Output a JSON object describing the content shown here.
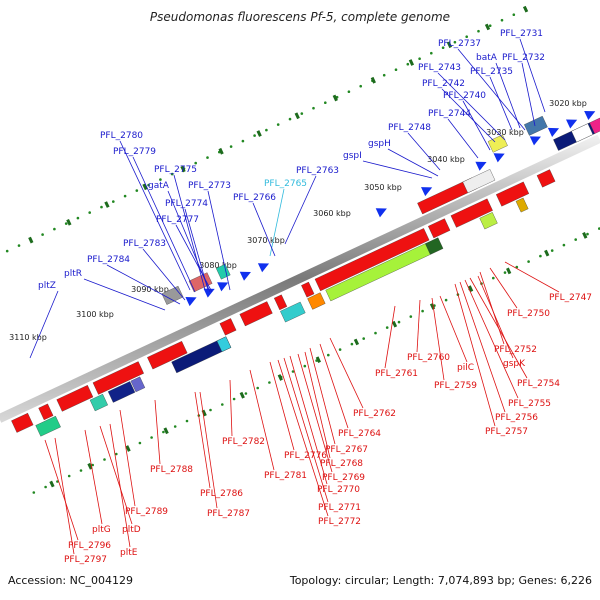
{
  "title": "Pseudomonas fluorescens Pf-5, complete genome",
  "accession": "Accession: NC_004129",
  "topology": "Topology: circular; Length: 7,074,893 bp; Genes: 6,226",
  "colors": {
    "plus_label": "#1a1acc",
    "plus_label_alt": "#33bbdd",
    "minus_label": "#dd1111",
    "tick": "#228822",
    "backbone": "#888888"
  },
  "kbp_ticks": [
    "3020 kbp",
    "3030 kbp",
    "3040 kbp",
    "3050 kbp",
    "3060 kbp",
    "3070 kbp",
    "3080 kbp",
    "3090 kbp",
    "3100 kbp",
    "3110 kbp"
  ],
  "plus_labels": [
    {
      "id": "PFL_2731",
      "name": "PFL_2731"
    },
    {
      "id": "PFL_2737",
      "name": "PFL_2737"
    },
    {
      "id": "batA",
      "name": "batA"
    },
    {
      "id": "PFL_2732",
      "name": "PFL_2732"
    },
    {
      "id": "PFL_2735",
      "name": "PFL_2735"
    },
    {
      "id": "PFL_2743",
      "name": "PFL_2743"
    },
    {
      "id": "PFL_2742",
      "name": "PFL_2742"
    },
    {
      "id": "PFL_2740",
      "name": "PFL_2740"
    },
    {
      "id": "PFL_2744",
      "name": "PFL_2744"
    },
    {
      "id": "PFL_2748",
      "name": "PFL_2748"
    },
    {
      "id": "gspH",
      "name": "gspH"
    },
    {
      "id": "gspI",
      "name": "gspI"
    },
    {
      "id": "PFL_2780",
      "name": "PFL_2780"
    },
    {
      "id": "PFL_2779",
      "name": "PFL_2779"
    },
    {
      "id": "PFL_2775",
      "name": "PFL_2775"
    },
    {
      "id": "gatA",
      "name": "gatA"
    },
    {
      "id": "PFL_2773",
      "name": "PFL_2773"
    },
    {
      "id": "PFL_2765",
      "name": "PFL_2765"
    },
    {
      "id": "PFL_2763",
      "name": "PFL_2763"
    },
    {
      "id": "PFL_2774",
      "name": "PFL_2774"
    },
    {
      "id": "PFL_2766",
      "name": "PFL_2766"
    },
    {
      "id": "PFL_2777",
      "name": "PFL_2777"
    },
    {
      "id": "PFL_2783",
      "name": "PFL_2783"
    },
    {
      "id": "PFL_2784",
      "name": "PFL_2784"
    },
    {
      "id": "pltR",
      "name": "pltR"
    },
    {
      "id": "pltZ",
      "name": "pltZ"
    }
  ],
  "minus_labels": [
    {
      "id": "PFL_2747",
      "name": "PFL_2747"
    },
    {
      "id": "PFL_2750",
      "name": "PFL_2750"
    },
    {
      "id": "PFL_2752",
      "name": "PFL_2752"
    },
    {
      "id": "gspK",
      "name": "gspK"
    },
    {
      "id": "PFL_2754",
      "name": "PFL_2754"
    },
    {
      "id": "PFL_2755",
      "name": "PFL_2755"
    },
    {
      "id": "PFL_2756",
      "name": "PFL_2756"
    },
    {
      "id": "PFL_2757",
      "name": "PFL_2757"
    },
    {
      "id": "PFL_2760",
      "name": "PFL_2760"
    },
    {
      "id": "pilC",
      "name": "pilC"
    },
    {
      "id": "PFL_2759",
      "name": "PFL_2759"
    },
    {
      "id": "PFL_2761",
      "name": "PFL_2761"
    },
    {
      "id": "PFL_2762",
      "name": "PFL_2762"
    },
    {
      "id": "PFL_2764",
      "name": "PFL_2764"
    },
    {
      "id": "PFL_2767",
      "name": "PFL_2767"
    },
    {
      "id": "PFL_2768",
      "name": "PFL_2768"
    },
    {
      "id": "PFL_2769",
      "name": "PFL_2769"
    },
    {
      "id": "PFL_2770",
      "name": "PFL_2770"
    },
    {
      "id": "PFL_2771",
      "name": "PFL_2771"
    },
    {
      "id": "PFL_2772",
      "name": "PFL_2772"
    },
    {
      "id": "PFL_2776",
      "name": "PFL_2776"
    },
    {
      "id": "PFL_2782",
      "name": "PFL_2782"
    },
    {
      "id": "PFL_2781",
      "name": "PFL_2781"
    },
    {
      "id": "PFL_2788",
      "name": "PFL_2788"
    },
    {
      "id": "PFL_2786",
      "name": "PFL_2786"
    },
    {
      "id": "PFL_2787",
      "name": "PFL_2787"
    },
    {
      "id": "PFL_2789",
      "name": "PFL_2789"
    },
    {
      "id": "pltG",
      "name": "pltG"
    },
    {
      "id": "pltD",
      "name": "pltD"
    },
    {
      "id": "PFL_2796",
      "name": "PFL_2796"
    },
    {
      "id": "PFL_2797",
      "name": "PFL_2797"
    },
    {
      "id": "pltE",
      "name": "pltE"
    }
  ]
}
